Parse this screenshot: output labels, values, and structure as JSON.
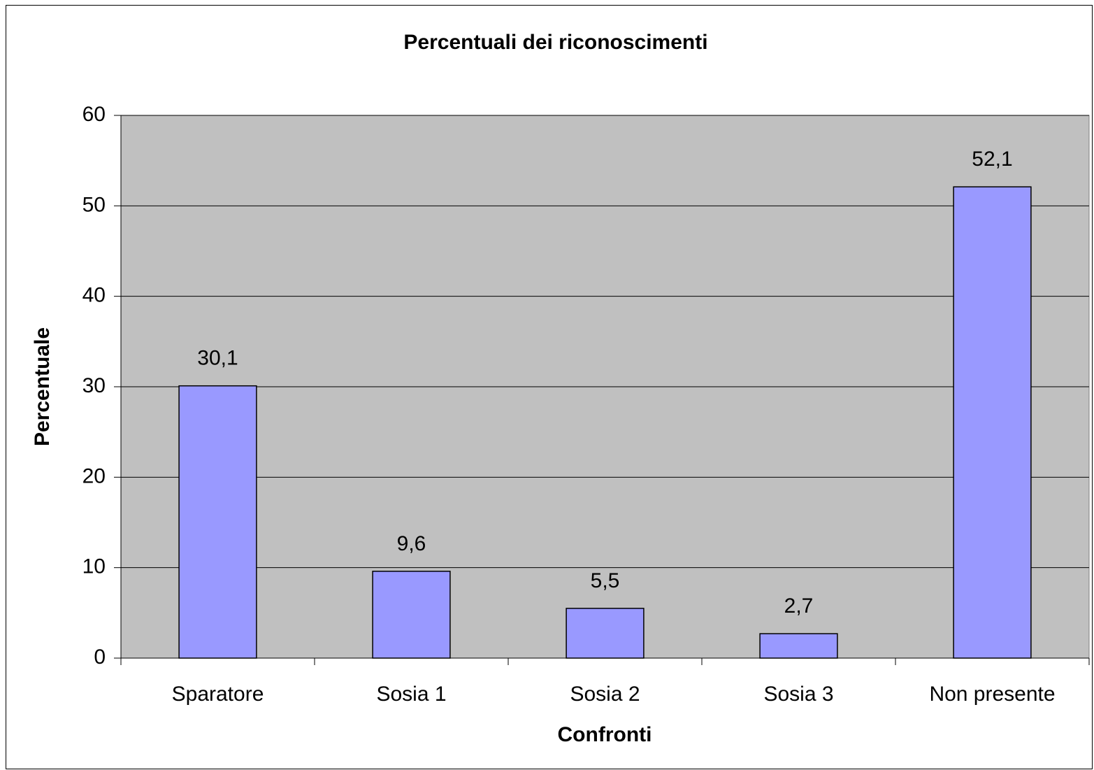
{
  "chart_data": {
    "type": "bar",
    "title": "Percentuali dei riconoscimenti",
    "x_label": "Confronti",
    "y_label": "Percentuale",
    "categories": [
      "Sparatore",
      "Sosia 1",
      "Sosia 2",
      "Sosia 3",
      "Non presente"
    ],
    "values": [
      30.1,
      9.6,
      5.5,
      2.7,
      52.1
    ],
    "value_labels": [
      "30,1",
      "9,6",
      "5,5",
      "2,7",
      "52,1"
    ],
    "color": "#9999ff",
    "ylim": [
      0,
      60
    ],
    "yticks": [
      0,
      10,
      20,
      30,
      40,
      50,
      60
    ],
    "grid": true
  }
}
